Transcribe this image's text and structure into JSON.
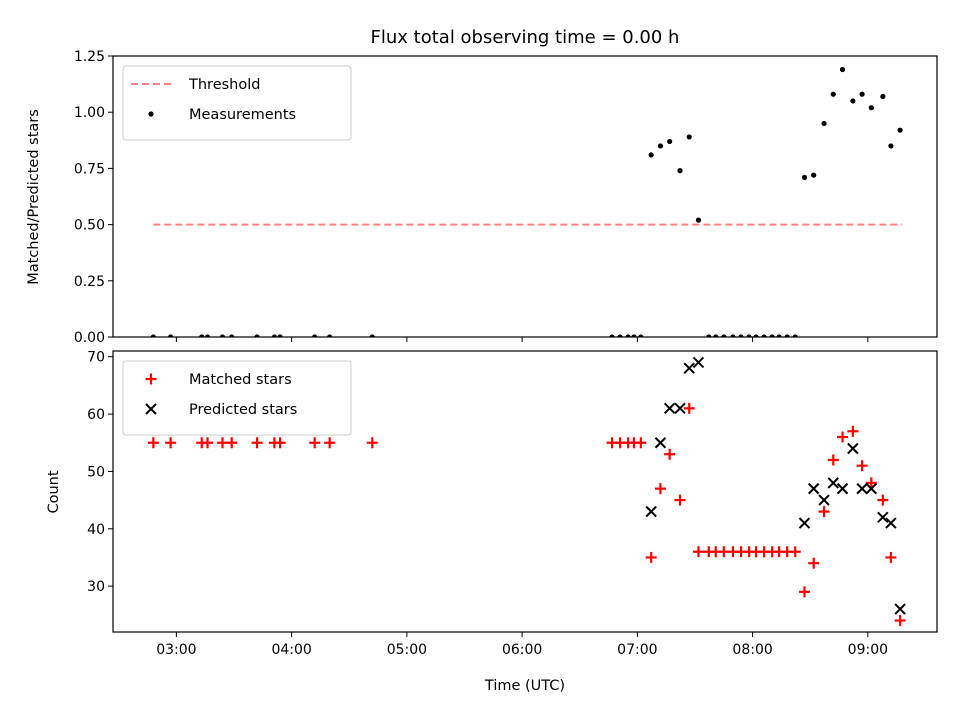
{
  "figure": {
    "title": "Flux total observing time = 0.00 h",
    "xlabel": "Time (UTC)",
    "x_ticks": [
      {
        "value": 3.0,
        "label": "03:00"
      },
      {
        "value": 4.0,
        "label": "04:00"
      },
      {
        "value": 5.0,
        "label": "05:00"
      },
      {
        "value": 6.0,
        "label": "06:00"
      },
      {
        "value": 7.0,
        "label": "07:00"
      },
      {
        "value": 8.0,
        "label": "08:00"
      },
      {
        "value": 9.0,
        "label": "09:00"
      }
    ],
    "xlim": [
      2.45,
      9.6
    ]
  },
  "chart_data": [
    {
      "type": "scatter",
      "panel": "top",
      "ylabel": "Matched/Predicted stars",
      "ylim": [
        0,
        1.25
      ],
      "y_ticks": [
        "0.00",
        "0.25",
        "0.50",
        "0.75",
        "1.00",
        "1.25"
      ],
      "grid": false,
      "legend_position": "top-left",
      "threshold": {
        "name": "Threshold",
        "y": 0.5,
        "x_range": [
          2.8,
          9.3
        ],
        "color": "#ff8080",
        "style": "dashed"
      },
      "series": [
        {
          "name": "Measurements",
          "color": "#000000",
          "marker": "dot",
          "x": [
            2.8,
            2.95,
            3.22,
            3.27,
            3.4,
            3.48,
            3.7,
            3.85,
            3.9,
            4.2,
            4.33,
            4.7,
            6.78,
            6.85,
            6.92,
            6.97,
            7.03,
            7.12,
            7.2,
            7.28,
            7.37,
            7.45,
            7.53,
            7.62,
            7.68,
            7.75,
            7.83,
            7.9,
            7.97,
            8.03,
            8.1,
            8.17,
            8.23,
            8.3,
            8.37,
            8.45,
            8.53,
            8.62,
            8.7,
            8.78,
            8.87,
            8.95,
            9.03,
            9.13,
            9.2,
            9.28
          ],
          "y": [
            0,
            0,
            0,
            0,
            0,
            0,
            0,
            0,
            0,
            0,
            0,
            0,
            0,
            0,
            0,
            0,
            0,
            0.81,
            0.85,
            0.87,
            0.74,
            0.89,
            0.52,
            0,
            0,
            0,
            0,
            0,
            0,
            0,
            0,
            0,
            0,
            0,
            0,
            0.71,
            0.72,
            0.95,
            1.08,
            1.19,
            1.05,
            1.08,
            1.02,
            1.07,
            0.85,
            0.92
          ]
        }
      ]
    },
    {
      "type": "scatter",
      "panel": "bottom",
      "ylabel": "Count",
      "ylim": [
        22,
        71
      ],
      "y_ticks": [
        "30",
        "40",
        "50",
        "60",
        "70"
      ],
      "grid": false,
      "legend_position": "top-left",
      "series": [
        {
          "name": "Matched stars",
          "color": "#ff0000",
          "marker": "plus",
          "x": [
            2.8,
            2.95,
            3.22,
            3.27,
            3.4,
            3.48,
            3.7,
            3.85,
            3.9,
            4.2,
            4.33,
            4.7,
            6.78,
            6.85,
            6.92,
            6.97,
            7.03,
            7.12,
            7.2,
            7.28,
            7.37,
            7.45,
            7.53,
            7.62,
            7.68,
            7.75,
            7.83,
            7.9,
            7.97,
            8.03,
            8.1,
            8.17,
            8.23,
            8.3,
            8.37,
            8.45,
            8.53,
            8.62,
            8.7,
            8.78,
            8.87,
            8.95,
            9.03,
            9.13,
            9.2,
            9.28
          ],
          "y": [
            55,
            55,
            55,
            55,
            55,
            55,
            55,
            55,
            55,
            55,
            55,
            55,
            55,
            55,
            55,
            55,
            55,
            35,
            47,
            53,
            45,
            61,
            36,
            36,
            36,
            36,
            36,
            36,
            36,
            36,
            36,
            36,
            36,
            36,
            36,
            29,
            34,
            43,
            52,
            56,
            57,
            51,
            48,
            45,
            35,
            24
          ]
        },
        {
          "name": "Predicted stars",
          "color": "#000000",
          "marker": "x",
          "x": [
            7.12,
            7.2,
            7.28,
            7.37,
            7.45,
            7.53,
            8.45,
            8.53,
            8.62,
            8.7,
            8.78,
            8.87,
            8.95,
            9.03,
            9.13,
            9.2,
            9.28
          ],
          "y": [
            43,
            55,
            61,
            61,
            68,
            69,
            41,
            47,
            45,
            48,
            47,
            54,
            47,
            47,
            42,
            41,
            26
          ]
        }
      ]
    }
  ]
}
